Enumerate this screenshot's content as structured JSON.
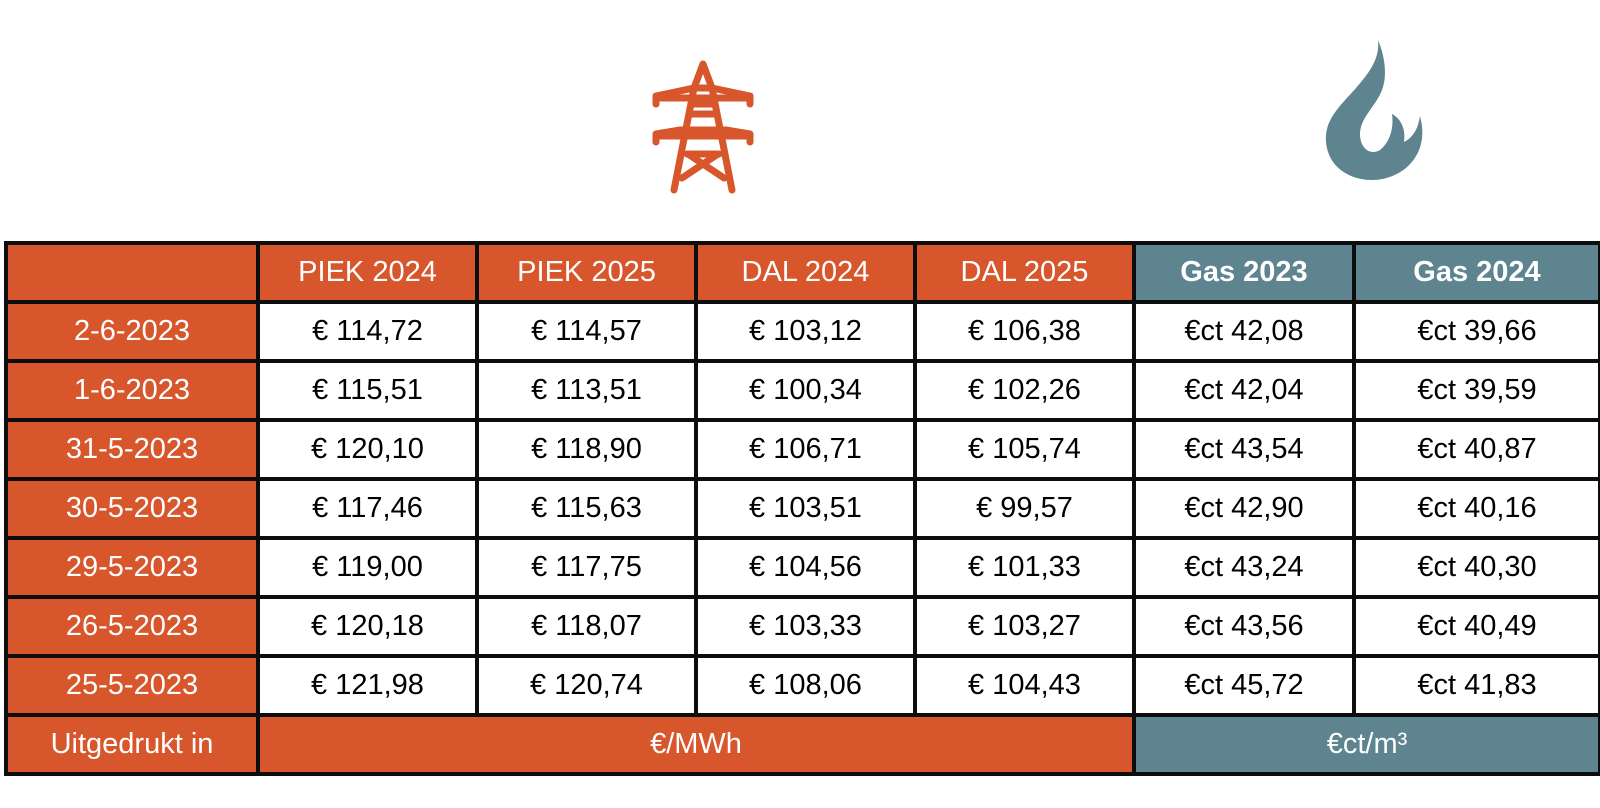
{
  "icons": {
    "electricity": "transmission-tower-icon",
    "gas": "flame-icon"
  },
  "colors": {
    "electricity_accent": "#d7562c",
    "gas_accent": "#5e8490",
    "border": "#0d0d0d"
  },
  "table": {
    "headers": [
      "",
      "PIEK 2024",
      "PIEK 2025",
      "DAL 2024",
      "DAL 2025",
      "Gas 2023",
      "Gas 2024"
    ],
    "rows": [
      {
        "date": "2-6-2023",
        "values": [
          "€ 114,72",
          "€ 114,57",
          "€ 103,12",
          "€ 106,38",
          "€ct 42,08",
          "€ct 39,66"
        ]
      },
      {
        "date": "1-6-2023",
        "values": [
          "€ 115,51",
          "€ 113,51",
          "€ 100,34",
          "€ 102,26",
          "€ct 42,04",
          "€ct 39,59"
        ]
      },
      {
        "date": "31-5-2023",
        "values": [
          "€ 120,10",
          "€ 118,90",
          "€ 106,71",
          "€ 105,74",
          "€ct 43,54",
          "€ct 40,87"
        ]
      },
      {
        "date": "30-5-2023",
        "values": [
          "€ 117,46",
          "€ 115,63",
          "€ 103,51",
          "€ 99,57",
          "€ct 42,90",
          "€ct 40,16"
        ]
      },
      {
        "date": "29-5-2023",
        "values": [
          "€ 119,00",
          "€ 117,75",
          "€ 104,56",
          "€ 101,33",
          "€ct 43,24",
          "€ct 40,30"
        ]
      },
      {
        "date": "26-5-2023",
        "values": [
          "€ 120,18",
          "€ 118,07",
          "€ 103,33",
          "€ 103,27",
          "€ct 43,56",
          "€ct 40,49"
        ]
      },
      {
        "date": "25-5-2023",
        "values": [
          "€ 121,98",
          "€ 120,74",
          "€ 108,06",
          "€ 104,43",
          "€ct 45,72",
          "€ct 41,83"
        ]
      }
    ],
    "footer": {
      "label": "Uitgedrukt in",
      "electricity_unit": "€/MWh",
      "gas_unit": "€ct/m³"
    }
  }
}
